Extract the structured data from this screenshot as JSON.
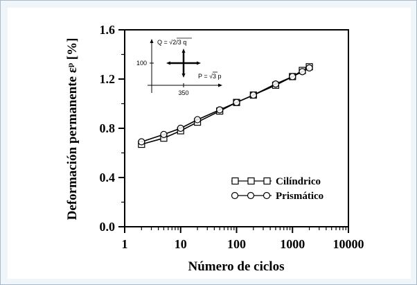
{
  "chart_data": {
    "type": "line",
    "xscale": "log",
    "xlim": [
      1,
      10000
    ],
    "ylim": [
      0.0,
      1.6
    ],
    "xticks": [
      1,
      10,
      100,
      1000,
      10000
    ],
    "yticks": [
      0.0,
      0.4,
      0.8,
      1.2,
      1.6
    ],
    "xtick_labels": [
      "1",
      "10",
      "100",
      "1000",
      "10000"
    ],
    "ytick_labels": [
      "0.0",
      "0.4",
      "0.8",
      "1.2",
      "1.6"
    ],
    "xlabel": "Número de ciclos",
    "ylabel": "Deformación permanente εᵖ [%]",
    "legend_position": "bottom-right",
    "series": [
      {
        "name": "Cilíndrico",
        "marker": "square",
        "x": [
          2,
          5,
          10,
          20,
          50,
          100,
          200,
          500,
          1000,
          1500,
          2000
        ],
        "y": [
          0.67,
          0.72,
          0.78,
          0.85,
          0.94,
          1.01,
          1.07,
          1.15,
          1.22,
          1.27,
          1.3
        ]
      },
      {
        "name": "Prismático",
        "marker": "circle",
        "x": [
          2,
          5,
          10,
          20,
          50,
          100,
          200,
          500,
          1000,
          1500,
          2000
        ],
        "y": [
          0.69,
          0.75,
          0.8,
          0.87,
          0.95,
          1.01,
          1.07,
          1.16,
          1.22,
          1.26,
          1.29
        ]
      }
    ],
    "inset": {
      "q_label": "Q = √2/3 q",
      "p_label": "P = √3 p",
      "q_value": "100",
      "p_value": "350"
    }
  }
}
